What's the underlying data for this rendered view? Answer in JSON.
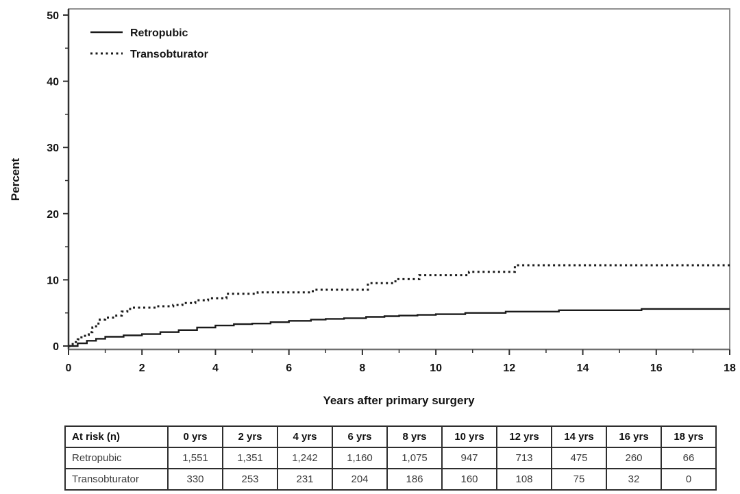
{
  "chart_data": {
    "type": "line",
    "title": "",
    "xlabel": "Years after primary surgery",
    "ylabel": "Percent",
    "xlim": [
      0,
      18
    ],
    "ylim": [
      0,
      50
    ],
    "x_major_ticks": [
      0,
      2,
      4,
      6,
      8,
      10,
      12,
      14,
      16,
      18
    ],
    "x_minor_ticks": [
      1,
      3,
      5,
      7,
      9,
      11,
      13,
      15,
      17
    ],
    "y_major_ticks": [
      0,
      10,
      20,
      30,
      40,
      50
    ],
    "y_minor_ticks": [
      5,
      15,
      25,
      35,
      45
    ],
    "grid": false,
    "legend_position": "top-left-inside",
    "colors": {
      "line": "#1a1a1a",
      "frame": "#8f8f8f",
      "axis": "#2f2f2f",
      "text": "#141414"
    },
    "series": [
      {
        "name": "Retropubic",
        "style": "solid",
        "color": "#1a1a1a",
        "step": true,
        "points": [
          [
            0,
            0
          ],
          [
            0.25,
            0.4
          ],
          [
            0.5,
            0.8
          ],
          [
            0.75,
            1.1
          ],
          [
            1.0,
            1.4
          ],
          [
            1.5,
            1.6
          ],
          [
            2.0,
            1.8
          ],
          [
            2.5,
            2.1
          ],
          [
            3.0,
            2.4
          ],
          [
            3.5,
            2.8
          ],
          [
            4.0,
            3.1
          ],
          [
            4.5,
            3.3
          ],
          [
            5.0,
            3.4
          ],
          [
            5.5,
            3.6
          ],
          [
            6.0,
            3.8
          ],
          [
            6.6,
            4.0
          ],
          [
            7.0,
            4.1
          ],
          [
            7.5,
            4.2
          ],
          [
            8.1,
            4.4
          ],
          [
            8.6,
            4.5
          ],
          [
            9.0,
            4.6
          ],
          [
            9.5,
            4.7
          ],
          [
            10.0,
            4.8
          ],
          [
            10.8,
            5.0
          ],
          [
            11.9,
            5.2
          ],
          [
            13.35,
            5.4
          ],
          [
            15.6,
            5.6
          ],
          [
            18,
            5.6
          ]
        ]
      },
      {
        "name": "Transobturator",
        "style": "dotted",
        "color": "#1a1a1a",
        "step": true,
        "points": [
          [
            0,
            0
          ],
          [
            0.08,
            0.3
          ],
          [
            0.15,
            0.6
          ],
          [
            0.25,
            1.0
          ],
          [
            0.35,
            1.3
          ],
          [
            0.45,
            1.7
          ],
          [
            0.55,
            2.1
          ],
          [
            0.65,
            2.8
          ],
          [
            0.75,
            3.4
          ],
          [
            0.85,
            4.0
          ],
          [
            1.0,
            4.3
          ],
          [
            1.3,
            4.6
          ],
          [
            1.45,
            5.2
          ],
          [
            1.6,
            5.6
          ],
          [
            1.75,
            5.8
          ],
          [
            2.4,
            6.0
          ],
          [
            2.85,
            6.2
          ],
          [
            3.1,
            6.5
          ],
          [
            3.45,
            6.9
          ],
          [
            3.8,
            7.2
          ],
          [
            4.3,
            7.9
          ],
          [
            5.15,
            8.1
          ],
          [
            6.65,
            8.5
          ],
          [
            8.15,
            9.5
          ],
          [
            8.9,
            10.1
          ],
          [
            9.55,
            10.7
          ],
          [
            10.9,
            11.2
          ],
          [
            12.15,
            12.2
          ],
          [
            18,
            12.2
          ]
        ]
      }
    ]
  },
  "risk_table": {
    "header": [
      "At risk (n)",
      "0 yrs",
      "2 yrs",
      "4 yrs",
      "6 yrs",
      "8 yrs",
      "10 yrs",
      "12 yrs",
      "14 yrs",
      "16 yrs",
      "18 yrs"
    ],
    "rows": [
      {
        "label": "Retropubic",
        "values": [
          "1,551",
          "1,351",
          "1,242",
          "1,160",
          "1,075",
          "947",
          "713",
          "475",
          "260",
          "66"
        ]
      },
      {
        "label": "Transobturator",
        "values": [
          "330",
          "253",
          "231",
          "204",
          "186",
          "160",
          "108",
          "75",
          "32",
          "0"
        ]
      }
    ]
  }
}
